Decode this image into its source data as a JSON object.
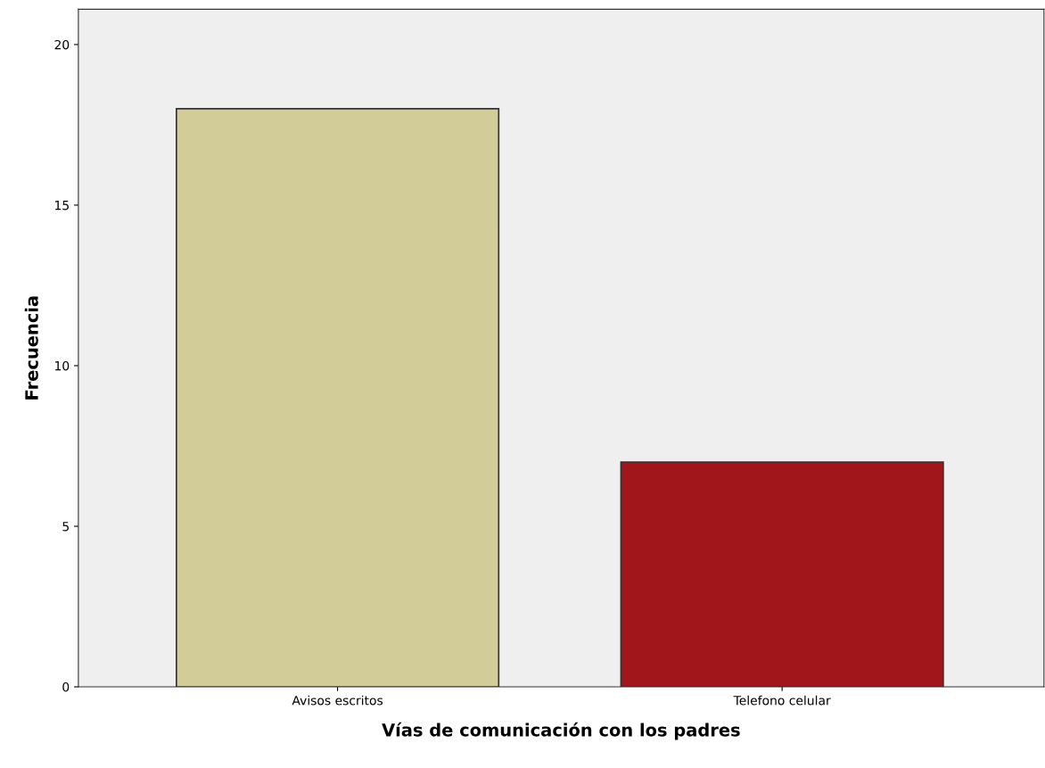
{
  "chart_data": {
    "type": "bar",
    "xlabel": "Vías de comunicación con los padres",
    "ylabel": "Frecuencia",
    "categories": [
      "Avisos escritos",
      "Telefono celular"
    ],
    "values": [
      18,
      7
    ],
    "colors": [
      "#d2cd98",
      "#a0161b"
    ],
    "ylim": [
      0,
      21.1
    ],
    "yticks": [
      0,
      5,
      10,
      15,
      20
    ],
    "grid": false,
    "legend": false
  }
}
